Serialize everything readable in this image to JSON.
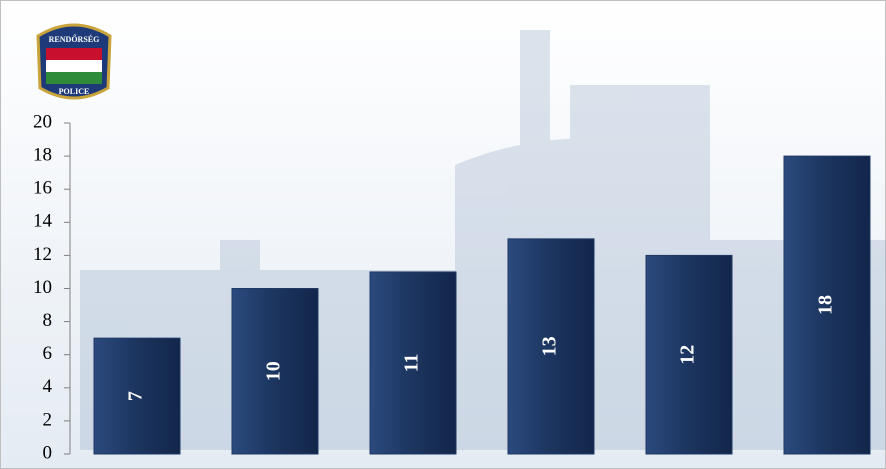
{
  "chart_data": {
    "type": "bar",
    "categories": [
      null,
      null,
      null,
      null,
      null,
      null
    ],
    "values": [
      7,
      10,
      11,
      13,
      12,
      18
    ],
    "color": "#1f3864",
    "ylim": [
      0,
      20
    ],
    "yticks": [
      0,
      2,
      4,
      6,
      8,
      10,
      12,
      14,
      16,
      18,
      20
    ]
  },
  "logo": {
    "top_text": "RENDŐRSÉG",
    "bottom_text": "POLICE"
  }
}
